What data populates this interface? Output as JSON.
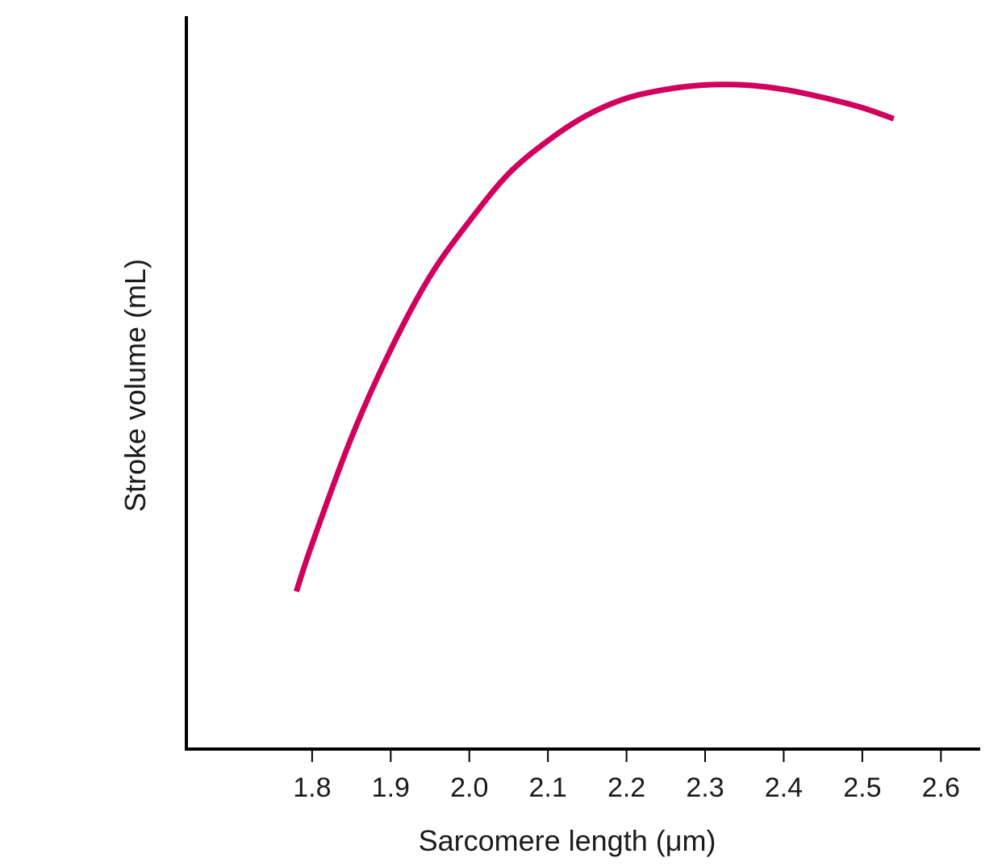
{
  "chart_data": {
    "type": "line",
    "title": "",
    "xlabel": "Sarcomere length (μm)",
    "ylabel": "Stroke volume (mL)",
    "x_ticks": [
      "1.8",
      "1.9",
      "2.0",
      "2.1",
      "2.2",
      "2.3",
      "2.4",
      "2.5",
      "2.6"
    ],
    "y_ticks": [],
    "xlim": [
      1.64,
      2.65
    ],
    "ylim": [
      0,
      100
    ],
    "grid": false,
    "series": [
      {
        "color": "#d1005d",
        "points": [
          {
            "x": 1.78,
            "y": 21.5
          },
          {
            "x": 1.8,
            "y": 28.0
          },
          {
            "x": 1.85,
            "y": 42.5
          },
          {
            "x": 1.9,
            "y": 54.5
          },
          {
            "x": 1.95,
            "y": 64.5
          },
          {
            "x": 2.0,
            "y": 72.0
          },
          {
            "x": 2.05,
            "y": 78.5
          },
          {
            "x": 2.1,
            "y": 83.0
          },
          {
            "x": 2.15,
            "y": 86.5
          },
          {
            "x": 2.2,
            "y": 88.8
          },
          {
            "x": 2.25,
            "y": 90.0
          },
          {
            "x": 2.3,
            "y": 90.6
          },
          {
            "x": 2.35,
            "y": 90.6
          },
          {
            "x": 2.4,
            "y": 90.0
          },
          {
            "x": 2.45,
            "y": 88.9
          },
          {
            "x": 2.5,
            "y": 87.5
          },
          {
            "x": 2.54,
            "y": 86.0
          }
        ]
      }
    ]
  }
}
